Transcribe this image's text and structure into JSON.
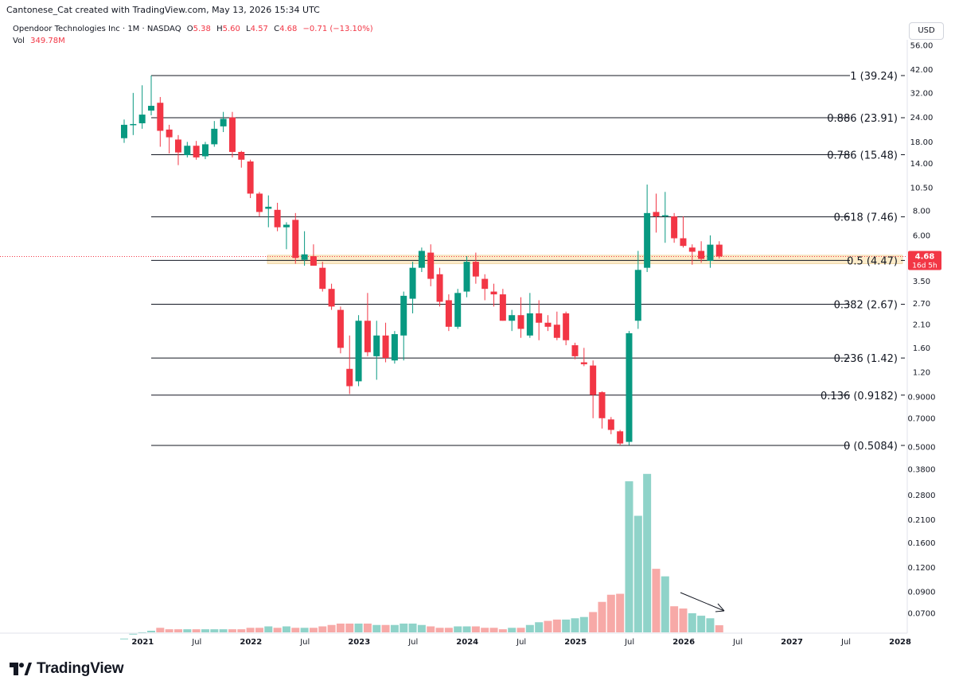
{
  "header": {
    "credit": "Cantonese_Cat created with TradingView.com, May 13, 2026 15:34 UTC"
  },
  "legend": {
    "symbol": "Opendoor Technologies Inc · 1M · NASDAQ",
    "open_label": "O",
    "open_value": "5.38",
    "high_label": "H",
    "high_value": "5.60",
    "low_label": "L",
    "low_value": "4.57",
    "close_label": "C",
    "close_value": "4.68",
    "change": "−0.71 (−13.10%)",
    "vol_label": "Vol",
    "vol_value": "349.78M"
  },
  "currency_button": "USD",
  "price_tag": {
    "price": "4.68",
    "countdown": "16d 5h"
  },
  "branding": {
    "logo_text": "TradingView"
  },
  "colors": {
    "up": "#089981",
    "down": "#f23645",
    "volume_up": "#8fd3c9",
    "volume_down": "#f7a9a7",
    "zone": "#fbe6b8"
  },
  "chart_data": {
    "type": "candlestick",
    "title": "Opendoor Technologies Inc · 1M · NASDAQ",
    "scale": "log",
    "interval": "1M",
    "price_axis_ticks": [
      "56.00",
      "42.00",
      "32.00",
      "24.00",
      "18.00",
      "14.00",
      "10.50",
      "8.00",
      "6.00",
      "3.50",
      "2.70",
      "2.10",
      "1.60",
      "1.20",
      "0.9000",
      "0.7000",
      "0.5000"
    ],
    "volume_axis_ticks": [
      "0.3800",
      "0.2800",
      "0.2100",
      "0.1600",
      "0.1200",
      "0.0900",
      "0.0700"
    ],
    "time_axis_ticks": [
      "2021",
      "Jul",
      "2022",
      "Jul",
      "2023",
      "Jul",
      "2024",
      "Jul",
      "2025",
      "Jul",
      "2026",
      "Jul",
      "2027",
      "Jul",
      "2028"
    ],
    "time_axis_bold": [
      "2021",
      "2022",
      "2023",
      "2024",
      "2025",
      "2026",
      "2027",
      "2028"
    ],
    "fib_levels": [
      {
        "level": "1",
        "price": 39.24,
        "label": "1 (39.24)"
      },
      {
        "level": "0.886",
        "price": 23.91,
        "label": "0.886 (23.91)"
      },
      {
        "level": "0.786",
        "price": 15.48,
        "label": "0.786 (15.48)"
      },
      {
        "level": "0.618",
        "price": 7.46,
        "label": "0.618 (7.46)"
      },
      {
        "level": "0.5",
        "price": 4.47,
        "label": "0.5 (4.47)"
      },
      {
        "level": "0.382",
        "price": 2.67,
        "label": "0.382 (2.67)"
      },
      {
        "level": "0.236",
        "price": 1.42,
        "label": "0.236 (1.42)"
      },
      {
        "level": "0.136",
        "price": 0.9182,
        "label": "0.136 (0.9182)"
      },
      {
        "level": "0",
        "price": 0.5084,
        "label": "0 (0.5084)"
      }
    ],
    "highlight_zone": {
      "from": 4.3,
      "to": 4.75
    },
    "last_price": 4.68,
    "candles": [
      {
        "date": "2020-12",
        "o": 18.8,
        "h": 23.4,
        "l": 17.8,
        "c": 22.0
      },
      {
        "date": "2021-01",
        "o": 22.0,
        "h": 32.0,
        "l": 19.5,
        "c": 22.2
      },
      {
        "date": "2021-02",
        "o": 22.4,
        "h": 35.0,
        "l": 21.0,
        "c": 24.8
      },
      {
        "date": "2021-03",
        "o": 26.0,
        "h": 39.24,
        "l": 24.6,
        "c": 27.5
      },
      {
        "date": "2021-04",
        "o": 28.5,
        "h": 30.5,
        "l": 17.0,
        "c": 20.5
      },
      {
        "date": "2021-05",
        "o": 20.8,
        "h": 22.0,
        "l": 15.7,
        "c": 19.0
      },
      {
        "date": "2021-06",
        "o": 18.5,
        "h": 19.5,
        "l": 13.7,
        "c": 15.9
      },
      {
        "date": "2021-07",
        "o": 15.4,
        "h": 18.0,
        "l": 15.0,
        "c": 17.2
      },
      {
        "date": "2021-08",
        "o": 17.2,
        "h": 18.2,
        "l": 14.6,
        "c": 15.0
      },
      {
        "date": "2021-09",
        "o": 15.2,
        "h": 18.0,
        "l": 14.7,
        "c": 17.5
      },
      {
        "date": "2021-10",
        "o": 17.5,
        "h": 23.0,
        "l": 17.0,
        "c": 21.0
      },
      {
        "date": "2021-11",
        "o": 21.6,
        "h": 25.6,
        "l": 20.2,
        "c": 23.6
      },
      {
        "date": "2021-12",
        "o": 24.0,
        "h": 25.6,
        "l": 15.0,
        "c": 16.0
      },
      {
        "date": "2022-01",
        "o": 16.0,
        "h": 16.2,
        "l": 13.3,
        "c": 14.6
      },
      {
        "date": "2022-02",
        "o": 14.3,
        "h": 14.6,
        "l": 9.3,
        "c": 9.8
      },
      {
        "date": "2022-03",
        "o": 9.8,
        "h": 10.0,
        "l": 7.5,
        "c": 7.9
      },
      {
        "date": "2022-04",
        "o": 8.2,
        "h": 9.6,
        "l": 6.6,
        "c": 8.4
      },
      {
        "date": "2022-05",
        "o": 8.1,
        "h": 8.8,
        "l": 6.3,
        "c": 6.6
      },
      {
        "date": "2022-06",
        "o": 6.6,
        "h": 7.0,
        "l": 5.1,
        "c": 6.8
      },
      {
        "date": "2022-07",
        "o": 7.2,
        "h": 7.8,
        "l": 4.3,
        "c": 4.6
      },
      {
        "date": "2022-08",
        "o": 4.5,
        "h": 6.3,
        "l": 4.2,
        "c": 4.8
      },
      {
        "date": "2022-09",
        "o": 4.7,
        "h": 5.4,
        "l": 4.2,
        "c": 4.2
      },
      {
        "date": "2022-10",
        "o": 4.1,
        "h": 4.4,
        "l": 3.1,
        "c": 3.2
      },
      {
        "date": "2022-11",
        "o": 3.2,
        "h": 3.4,
        "l": 2.5,
        "c": 2.6
      },
      {
        "date": "2022-12",
        "o": 2.5,
        "h": 2.6,
        "l": 1.5,
        "c": 1.6
      },
      {
        "date": "2023-01",
        "o": 1.25,
        "h": 1.85,
        "l": 0.93,
        "c": 1.02
      },
      {
        "date": "2023-02",
        "o": 1.08,
        "h": 2.35,
        "l": 1.02,
        "c": 2.2
      },
      {
        "date": "2023-03",
        "o": 2.2,
        "h": 3.05,
        "l": 1.45,
        "c": 1.52
      },
      {
        "date": "2023-04",
        "o": 1.45,
        "h": 2.2,
        "l": 1.1,
        "c": 1.85
      },
      {
        "date": "2023-05",
        "o": 1.85,
        "h": 2.15,
        "l": 1.35,
        "c": 1.42
      },
      {
        "date": "2023-06",
        "o": 1.38,
        "h": 1.95,
        "l": 1.33,
        "c": 1.88
      },
      {
        "date": "2023-07",
        "o": 1.85,
        "h": 3.1,
        "l": 1.38,
        "c": 2.95
      },
      {
        "date": "2023-08",
        "o": 2.85,
        "h": 4.4,
        "l": 2.4,
        "c": 4.1
      },
      {
        "date": "2023-09",
        "o": 4.1,
        "h": 5.2,
        "l": 3.9,
        "c": 5.0
      },
      {
        "date": "2023-10",
        "o": 4.9,
        "h": 5.4,
        "l": 3.3,
        "c": 3.6
      },
      {
        "date": "2023-11",
        "o": 3.8,
        "h": 4.1,
        "l": 2.6,
        "c": 2.75
      },
      {
        "date": "2023-12",
        "o": 2.8,
        "h": 3.0,
        "l": 1.95,
        "c": 2.05
      },
      {
        "date": "2024-01",
        "o": 2.05,
        "h": 3.2,
        "l": 2.0,
        "c": 3.05
      },
      {
        "date": "2024-02",
        "o": 3.1,
        "h": 4.7,
        "l": 2.9,
        "c": 4.4
      },
      {
        "date": "2024-03",
        "o": 4.4,
        "h": 4.9,
        "l": 3.4,
        "c": 3.7
      },
      {
        "date": "2024-04",
        "o": 3.6,
        "h": 3.8,
        "l": 2.8,
        "c": 3.2
      },
      {
        "date": "2024-05",
        "o": 3.1,
        "h": 3.4,
        "l": 2.6,
        "c": 3.0
      },
      {
        "date": "2024-06",
        "o": 3.0,
        "h": 3.2,
        "l": 2.2,
        "c": 2.2
      },
      {
        "date": "2024-07",
        "o": 2.2,
        "h": 2.5,
        "l": 1.95,
        "c": 2.35
      },
      {
        "date": "2024-08",
        "o": 2.35,
        "h": 2.9,
        "l": 1.8,
        "c": 2.0
      },
      {
        "date": "2024-09",
        "o": 1.85,
        "h": 3.05,
        "l": 1.8,
        "c": 2.4
      },
      {
        "date": "2024-10",
        "o": 2.4,
        "h": 2.8,
        "l": 1.75,
        "c": 2.15
      },
      {
        "date": "2024-11",
        "o": 2.15,
        "h": 2.35,
        "l": 1.95,
        "c": 2.05
      },
      {
        "date": "2024-12",
        "o": 2.1,
        "h": 2.45,
        "l": 1.75,
        "c": 1.8
      },
      {
        "date": "2025-01",
        "o": 2.4,
        "h": 2.45,
        "l": 1.65,
        "c": 1.75
      },
      {
        "date": "2025-02",
        "o": 1.65,
        "h": 1.7,
        "l": 1.4,
        "c": 1.45
      },
      {
        "date": "2025-03",
        "o": 1.35,
        "h": 1.6,
        "l": 1.29,
        "c": 1.32
      },
      {
        "date": "2025-04",
        "o": 1.3,
        "h": 1.38,
        "l": 0.7,
        "c": 0.92
      },
      {
        "date": "2025-05",
        "o": 0.95,
        "h": 0.96,
        "l": 0.62,
        "c": 0.7
      },
      {
        "date": "2025-06",
        "o": 0.69,
        "h": 0.71,
        "l": 0.58,
        "c": 0.61
      },
      {
        "date": "2025-07",
        "o": 0.6,
        "h": 0.61,
        "l": 0.5084,
        "c": 0.52
      },
      {
        "date": "2025-08",
        "o": 0.53,
        "h": 1.95,
        "l": 0.51,
        "c": 1.9
      },
      {
        "date": "2025-09",
        "o": 2.2,
        "h": 5.0,
        "l": 2.0,
        "c": 4.0
      },
      {
        "date": "2025-10",
        "o": 4.1,
        "h": 10.9,
        "l": 3.9,
        "c": 7.8
      },
      {
        "date": "2025-11",
        "o": 7.9,
        "h": 9.8,
        "l": 6.2,
        "c": 7.5
      },
      {
        "date": "2025-12",
        "o": 7.6,
        "h": 10.0,
        "l": 5.5,
        "c": 7.6
      },
      {
        "date": "2026-01",
        "o": 7.5,
        "h": 7.8,
        "l": 5.5,
        "c": 5.8
      },
      {
        "date": "2026-02",
        "o": 5.8,
        "h": 7.5,
        "l": 5.2,
        "c": 5.3
      },
      {
        "date": "2026-03",
        "o": 5.2,
        "h": 5.4,
        "l": 4.25,
        "c": 4.95
      },
      {
        "date": "2026-04",
        "o": 5.0,
        "h": 5.6,
        "l": 4.35,
        "c": 4.55
      },
      {
        "date": "2026-05",
        "o": 4.45,
        "h": 6.0,
        "l": 4.1,
        "c": 5.38
      },
      {
        "date": "2026-06",
        "o": 5.38,
        "h": 5.6,
        "l": 4.57,
        "c": 4.68
      }
    ],
    "volume": [
      {
        "date": "2020-12",
        "v": 0.052,
        "dir": "up"
      },
      {
        "date": "2021-01",
        "v": 0.055,
        "dir": "up"
      },
      {
        "date": "2021-02",
        "v": 0.056,
        "dir": "up"
      },
      {
        "date": "2021-03",
        "v": 0.057,
        "dir": "up"
      },
      {
        "date": "2021-04",
        "v": 0.059,
        "dir": "down"
      },
      {
        "date": "2021-05",
        "v": 0.058,
        "dir": "down"
      },
      {
        "date": "2021-06",
        "v": 0.058,
        "dir": "down"
      },
      {
        "date": "2021-07",
        "v": 0.058,
        "dir": "up"
      },
      {
        "date": "2021-08",
        "v": 0.058,
        "dir": "down"
      },
      {
        "date": "2021-09",
        "v": 0.058,
        "dir": "up"
      },
      {
        "date": "2021-10",
        "v": 0.058,
        "dir": "up"
      },
      {
        "date": "2021-11",
        "v": 0.058,
        "dir": "up"
      },
      {
        "date": "2021-12",
        "v": 0.058,
        "dir": "down"
      },
      {
        "date": "2022-01",
        "v": 0.058,
        "dir": "down"
      },
      {
        "date": "2022-02",
        "v": 0.059,
        "dir": "down"
      },
      {
        "date": "2022-03",
        "v": 0.059,
        "dir": "down"
      },
      {
        "date": "2022-04",
        "v": 0.06,
        "dir": "up"
      },
      {
        "date": "2022-05",
        "v": 0.059,
        "dir": "down"
      },
      {
        "date": "2022-06",
        "v": 0.06,
        "dir": "up"
      },
      {
        "date": "2022-07",
        "v": 0.059,
        "dir": "down"
      },
      {
        "date": "2022-08",
        "v": 0.059,
        "dir": "up"
      },
      {
        "date": "2022-09",
        "v": 0.059,
        "dir": "down"
      },
      {
        "date": "2022-10",
        "v": 0.06,
        "dir": "down"
      },
      {
        "date": "2022-11",
        "v": 0.061,
        "dir": "down"
      },
      {
        "date": "2022-12",
        "v": 0.062,
        "dir": "down"
      },
      {
        "date": "2023-01",
        "v": 0.062,
        "dir": "down"
      },
      {
        "date": "2023-02",
        "v": 0.062,
        "dir": "up"
      },
      {
        "date": "2023-03",
        "v": 0.062,
        "dir": "down"
      },
      {
        "date": "2023-04",
        "v": 0.061,
        "dir": "up"
      },
      {
        "date": "2023-05",
        "v": 0.061,
        "dir": "down"
      },
      {
        "date": "2023-06",
        "v": 0.061,
        "dir": "up"
      },
      {
        "date": "2023-07",
        "v": 0.062,
        "dir": "up"
      },
      {
        "date": "2023-08",
        "v": 0.062,
        "dir": "up"
      },
      {
        "date": "2023-09",
        "v": 0.061,
        "dir": "up"
      },
      {
        "date": "2023-10",
        "v": 0.06,
        "dir": "down"
      },
      {
        "date": "2023-11",
        "v": 0.059,
        "dir": "down"
      },
      {
        "date": "2023-12",
        "v": 0.059,
        "dir": "down"
      },
      {
        "date": "2024-01",
        "v": 0.06,
        "dir": "up"
      },
      {
        "date": "2024-02",
        "v": 0.06,
        "dir": "up"
      },
      {
        "date": "2024-03",
        "v": 0.06,
        "dir": "down"
      },
      {
        "date": "2024-04",
        "v": 0.059,
        "dir": "down"
      },
      {
        "date": "2024-05",
        "v": 0.059,
        "dir": "down"
      },
      {
        "date": "2024-06",
        "v": 0.058,
        "dir": "down"
      },
      {
        "date": "2024-07",
        "v": 0.059,
        "dir": "up"
      },
      {
        "date": "2024-08",
        "v": 0.059,
        "dir": "down"
      },
      {
        "date": "2024-09",
        "v": 0.061,
        "dir": "up"
      },
      {
        "date": "2024-10",
        "v": 0.063,
        "dir": "up"
      },
      {
        "date": "2024-11",
        "v": 0.064,
        "dir": "down"
      },
      {
        "date": "2024-12",
        "v": 0.065,
        "dir": "down"
      },
      {
        "date": "2025-01",
        "v": 0.065,
        "dir": "up"
      },
      {
        "date": "2025-02",
        "v": 0.066,
        "dir": "up"
      },
      {
        "date": "2025-03",
        "v": 0.067,
        "dir": "up"
      },
      {
        "date": "2025-04",
        "v": 0.071,
        "dir": "down"
      },
      {
        "date": "2025-05",
        "v": 0.08,
        "dir": "down"
      },
      {
        "date": "2025-06",
        "v": 0.087,
        "dir": "down"
      },
      {
        "date": "2025-07",
        "v": 0.088,
        "dir": "down"
      },
      {
        "date": "2025-08",
        "v": 0.33,
        "dir": "up"
      },
      {
        "date": "2025-09",
        "v": 0.22,
        "dir": "up"
      },
      {
        "date": "2025-10",
        "v": 0.36,
        "dir": "up"
      },
      {
        "date": "2025-11",
        "v": 0.118,
        "dir": "down"
      },
      {
        "date": "2025-12",
        "v": 0.108,
        "dir": "up"
      },
      {
        "date": "2026-01",
        "v": 0.076,
        "dir": "down"
      },
      {
        "date": "2026-02",
        "v": 0.074,
        "dir": "down"
      },
      {
        "date": "2026-03",
        "v": 0.07,
        "dir": "up"
      },
      {
        "date": "2026-04",
        "v": 0.068,
        "dir": "up"
      },
      {
        "date": "2026-05",
        "v": 0.066,
        "dir": "up"
      },
      {
        "date": "2026-06",
        "v": 0.0608,
        "dir": "down"
      }
    ]
  }
}
